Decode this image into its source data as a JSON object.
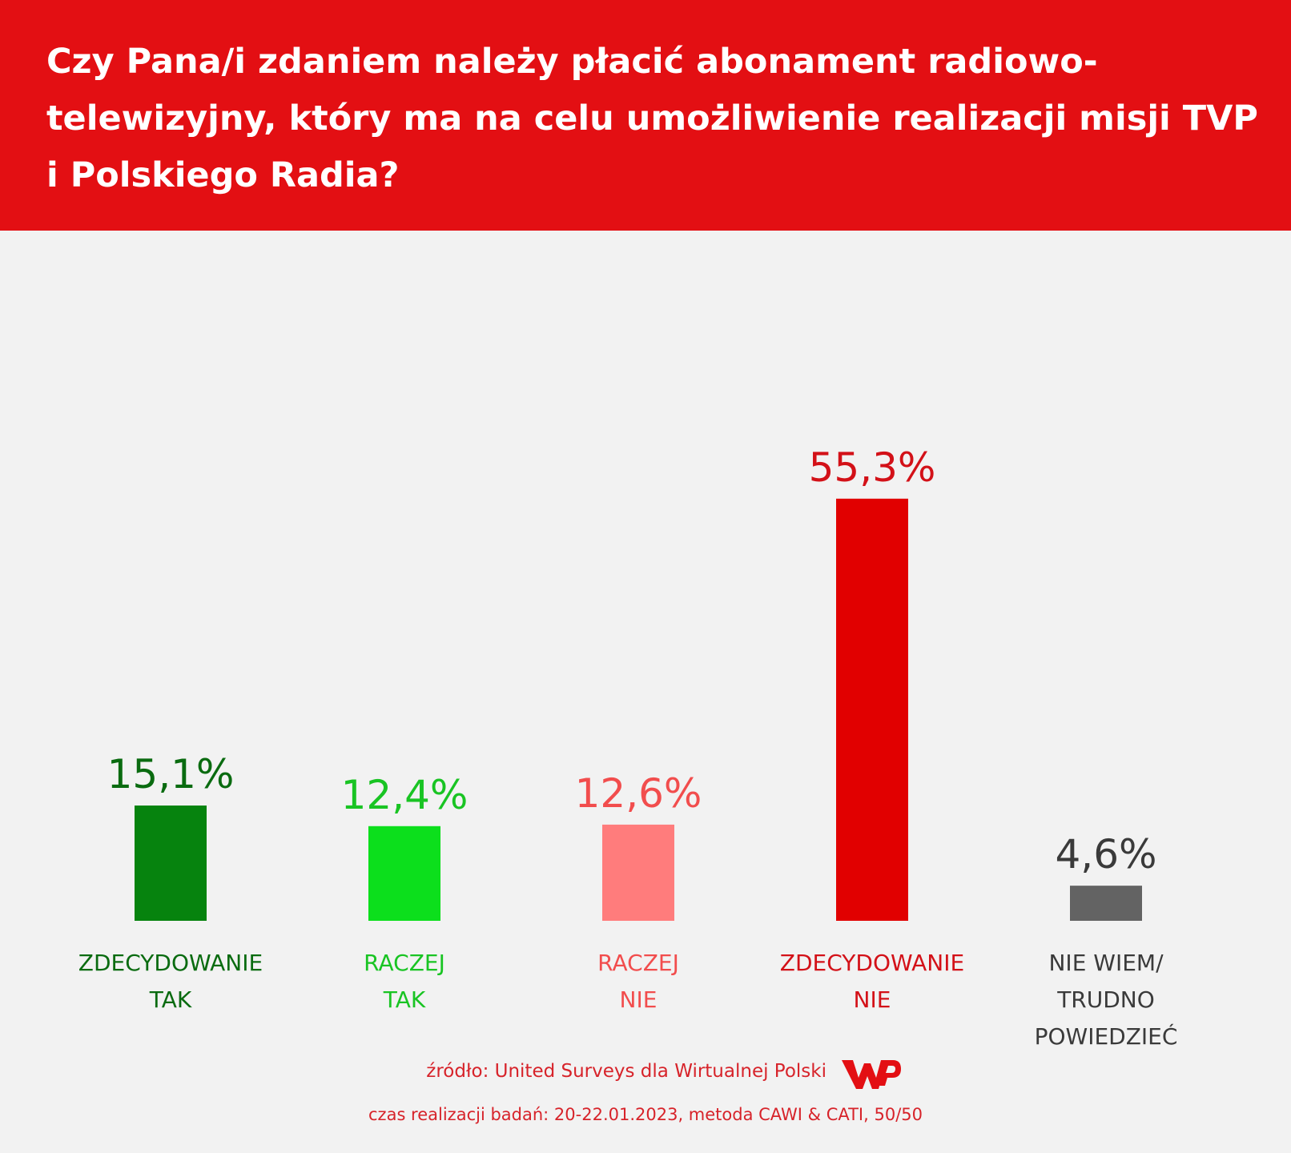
{
  "header": {
    "title": "Czy Pana/i zdaniem należy płacić abonament radiowo-\ntelewizyjny, który ma na celu umożliwienie realizacji misji TVP\ni Polskiego Radia?"
  },
  "chart_data": {
    "type": "bar",
    "title": "Czy Pana/i zdaniem należy płacić abonament radiowo-telewizyjny, który ma na celu umożliwienie realizacji misji TVP i Polskiego Radia?",
    "categories": [
      "ZDECYDOWANIE TAK",
      "RACZEJ TAK",
      "RACZEJ NIE",
      "ZDECYDOWANIE NIE",
      "NIE WIEM/ TRUDNO POWIEDZIEĆ"
    ],
    "category_lines": [
      [
        "ZDECYDOWANIE",
        "TAK"
      ],
      [
        "RACZEJ",
        "TAK"
      ],
      [
        "RACZEJ",
        "NIE"
      ],
      [
        "ZDECYDOWANIE",
        "NIE"
      ],
      [
        "NIE WIEM/",
        "TRUDNO",
        "POWIEDZIEĆ"
      ]
    ],
    "values": [
      15.1,
      12.4,
      12.6,
      55.3,
      4.6
    ],
    "value_labels": [
      "15,1%",
      "12,4%",
      "12,6%",
      "55,3%",
      "4,6%"
    ],
    "bar_colors": [
      "#06830e",
      "#0cdf1c",
      "#ff7c7c",
      "#e10000",
      "#636363"
    ],
    "label_colors": [
      "#0a6b10",
      "#19c423",
      "#f24d4d",
      "#d31118",
      "#3a3a3a"
    ],
    "xlabel": "",
    "ylabel": "",
    "ylim": [
      0,
      60
    ],
    "grid": false
  },
  "footer": {
    "source": "źródło: United Surveys dla Wirtualnej Polski",
    "details": "czas realizacji badań: 20-22.01.2023, metoda CAWI & CATI, 50/50",
    "logo_icon": "wp-logo-icon",
    "logo_color": "#e30f13"
  }
}
